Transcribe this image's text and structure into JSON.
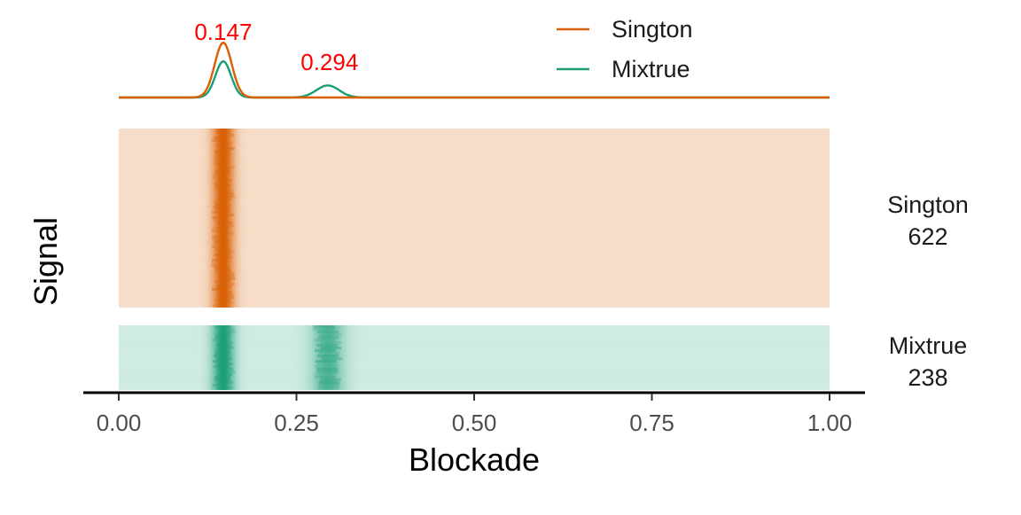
{
  "chart_data": {
    "type": "heatmap",
    "xlabel": "Blockade",
    "ylabel": "Signal",
    "xlim": [
      0,
      1
    ],
    "x_ticks": [
      "0.00",
      "0.25",
      "0.50",
      "0.75",
      "1.00"
    ],
    "colors": {
      "Sington": "#d95f02",
      "Mixtrue": "#1b9e77",
      "annotation": "#ff0000"
    },
    "density": {
      "series": [
        {
          "name": "Sington",
          "peaks": [
            {
              "center": 0.147,
              "height": 1.0,
              "width": 0.012
            }
          ]
        },
        {
          "name": "Mixtrue",
          "peaks": [
            {
              "center": 0.147,
              "height": 0.66,
              "width": 0.011
            },
            {
              "center": 0.294,
              "height": 0.22,
              "width": 0.016
            }
          ]
        }
      ],
      "peak_labels": [
        "0.147",
        "0.294"
      ],
      "legend": [
        "Sington",
        "Mixtrue"
      ],
      "legend_position": "top-right"
    },
    "panels": [
      {
        "name": "Sington",
        "count": "622",
        "bands": [
          0.147
        ]
      },
      {
        "name": "Mixtrue",
        "count": "238",
        "bands": [
          0.147,
          0.294
        ]
      }
    ]
  }
}
